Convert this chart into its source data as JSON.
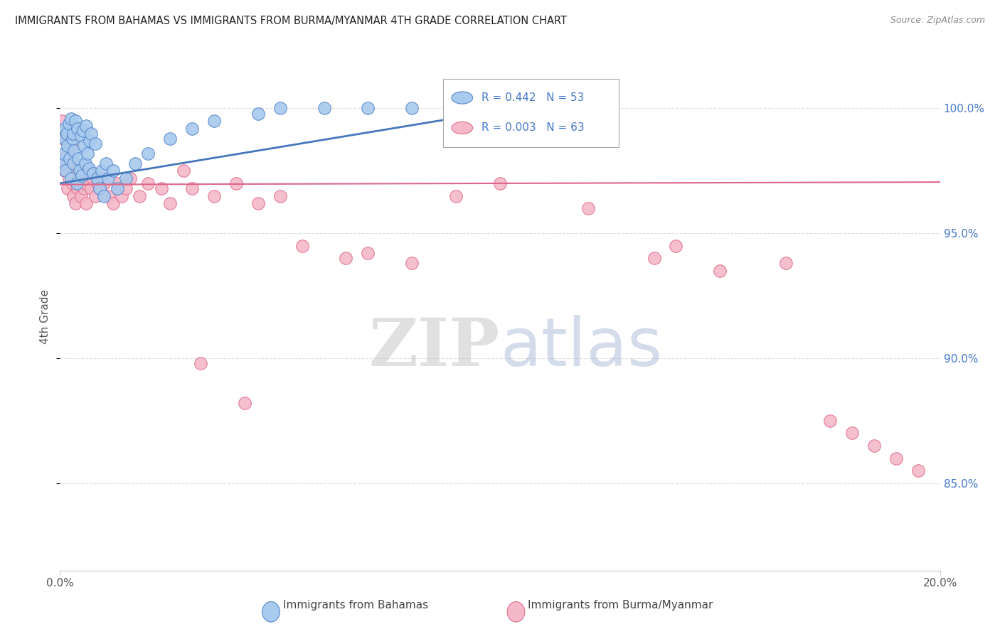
{
  "title": "IMMIGRANTS FROM BAHAMAS VS IMMIGRANTS FROM BURMA/MYANMAR 4TH GRADE CORRELATION CHART",
  "source": "Source: ZipAtlas.com",
  "ylabel": "4th Grade",
  "xlim": [
    0.0,
    20.0
  ],
  "ylim": [
    81.5,
    101.8
  ],
  "yticks": [
    85.0,
    90.0,
    95.0,
    100.0
  ],
  "legend_blue_r": "R = 0.442",
  "legend_blue_n": "N = 53",
  "legend_pink_r": "R = 0.003",
  "legend_pink_n": "N = 63",
  "blue_fill": "#A8CAEE",
  "pink_fill": "#F4B8C8",
  "blue_edge": "#5588CC",
  "pink_edge": "#E07090",
  "blue_line_color": "#4477BB",
  "pink_line_color": "#DD6688",
  "right_axis_color": "#4477CC",
  "grid_color": "#DDDDDD",
  "blue_scatter_x": [
    0.05,
    0.08,
    0.1,
    0.1,
    0.12,
    0.15,
    0.18,
    0.2,
    0.22,
    0.25,
    0.25,
    0.28,
    0.3,
    0.3,
    0.32,
    0.35,
    0.38,
    0.4,
    0.42,
    0.45,
    0.48,
    0.5,
    0.52,
    0.55,
    0.58,
    0.6,
    0.62,
    0.65,
    0.68,
    0.7,
    0.75,
    0.8,
    0.85,
    0.9,
    0.95,
    1.0,
    1.05,
    1.1,
    1.2,
    1.3,
    1.5,
    1.7,
    2.0,
    2.5,
    3.0,
    3.5,
    4.5,
    5.0,
    6.0,
    7.0,
    8.0,
    9.5,
    11.0
  ],
  "blue_scatter_y": [
    97.8,
    98.2,
    98.8,
    99.2,
    97.5,
    99.0,
    98.5,
    99.4,
    98.0,
    97.2,
    99.6,
    98.8,
    99.0,
    97.8,
    98.3,
    99.5,
    97.0,
    99.2,
    98.0,
    97.5,
    98.9,
    97.3,
    99.1,
    98.5,
    97.8,
    99.3,
    98.2,
    97.6,
    98.7,
    99.0,
    97.4,
    98.6,
    97.2,
    96.8,
    97.5,
    96.5,
    97.8,
    97.2,
    97.5,
    96.8,
    97.2,
    97.8,
    98.2,
    98.8,
    99.2,
    99.5,
    99.8,
    100.0,
    100.0,
    100.0,
    100.0,
    100.0,
    100.0
  ],
  "pink_scatter_x": [
    0.05,
    0.08,
    0.1,
    0.12,
    0.15,
    0.18,
    0.2,
    0.25,
    0.28,
    0.3,
    0.32,
    0.35,
    0.38,
    0.4,
    0.42,
    0.45,
    0.48,
    0.5,
    0.55,
    0.58,
    0.6,
    0.65,
    0.7,
    0.75,
    0.8,
    0.85,
    0.9,
    0.95,
    1.0,
    1.1,
    1.2,
    1.3,
    1.4,
    1.5,
    1.6,
    1.8,
    2.0,
    2.3,
    2.5,
    2.8,
    3.0,
    3.5,
    4.0,
    4.5,
    5.0,
    5.5,
    6.5,
    7.0,
    8.0,
    9.0,
    10.0,
    12.0,
    13.5,
    14.0,
    15.0,
    16.5,
    17.5,
    18.0,
    18.5,
    19.0,
    19.5,
    3.2,
    4.2
  ],
  "pink_scatter_y": [
    99.5,
    98.8,
    97.5,
    98.2,
    97.8,
    96.8,
    97.2,
    98.5,
    97.0,
    96.5,
    97.8,
    96.2,
    97.5,
    96.8,
    97.2,
    97.0,
    96.5,
    97.3,
    96.8,
    97.0,
    96.2,
    97.5,
    96.8,
    97.2,
    96.5,
    97.0,
    96.8,
    97.2,
    97.0,
    96.5,
    96.2,
    97.0,
    96.5,
    96.8,
    97.2,
    96.5,
    97.0,
    96.8,
    96.2,
    97.5,
    96.8,
    96.5,
    97.0,
    96.2,
    96.5,
    94.5,
    94.0,
    94.2,
    93.8,
    96.5,
    97.0,
    96.0,
    94.0,
    94.5,
    93.5,
    93.8,
    87.5,
    87.0,
    86.5,
    86.0,
    85.5,
    89.8,
    88.2
  ],
  "blue_trend_x": [
    0.0,
    11.0
  ],
  "blue_trend_y": [
    97.0,
    100.2
  ],
  "pink_trend_x": [
    0.0,
    20.0
  ],
  "pink_trend_y": [
    96.95,
    97.05
  ],
  "background_color": "#FFFFFF"
}
